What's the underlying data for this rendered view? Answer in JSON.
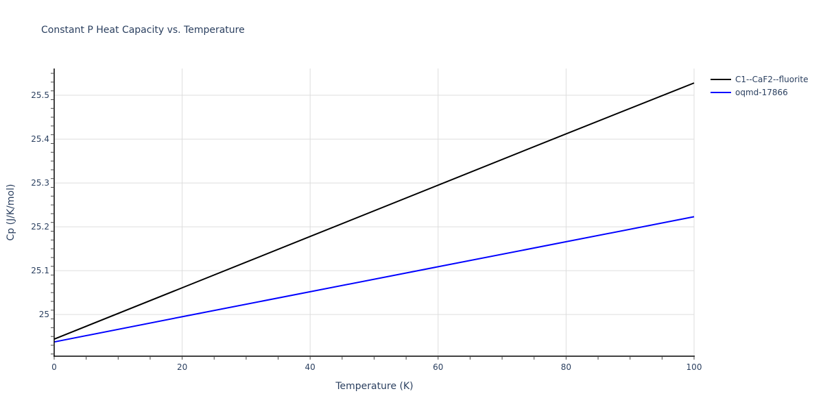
{
  "title": "Constant P Heat Capacity vs. Temperature",
  "chart_data": {
    "type": "line",
    "title": "Constant P Heat Capacity vs. Temperature",
    "xlabel": "Temperature (K)",
    "ylabel": "Cp (J/K/mol)",
    "xlim": [
      0,
      100
    ],
    "ylim": [
      24.905,
      25.561
    ],
    "x_ticks": [
      0,
      20,
      40,
      60,
      80,
      100
    ],
    "x_tick_labels": [
      "0",
      "20",
      "40",
      "60",
      "80",
      "100"
    ],
    "y_ticks": [
      25.0,
      25.1,
      25.2,
      25.3,
      25.4,
      25.5
    ],
    "y_tick_labels": [
      "25",
      "25.1",
      "25.2",
      "25.3",
      "25.4",
      "25.5"
    ],
    "grid": true,
    "legend_position": "top-right outside",
    "x": [
      0,
      20,
      40,
      60,
      80,
      100
    ],
    "series": [
      {
        "name": "C1--CaF2--fluorite",
        "color": "#000000",
        "values": [
          24.944,
          25.061,
          25.178,
          25.295,
          25.412,
          25.528
        ]
      },
      {
        "name": "oqmd-17866",
        "color": "#0000ff",
        "values": [
          24.9375,
          24.995,
          25.052,
          25.109,
          25.166,
          25.223
        ]
      }
    ]
  },
  "legend": {
    "items": [
      {
        "label": "C1--CaF2--fluorite",
        "color": "#000000"
      },
      {
        "label": "oqmd-17866",
        "color": "#0000ff"
      }
    ]
  }
}
